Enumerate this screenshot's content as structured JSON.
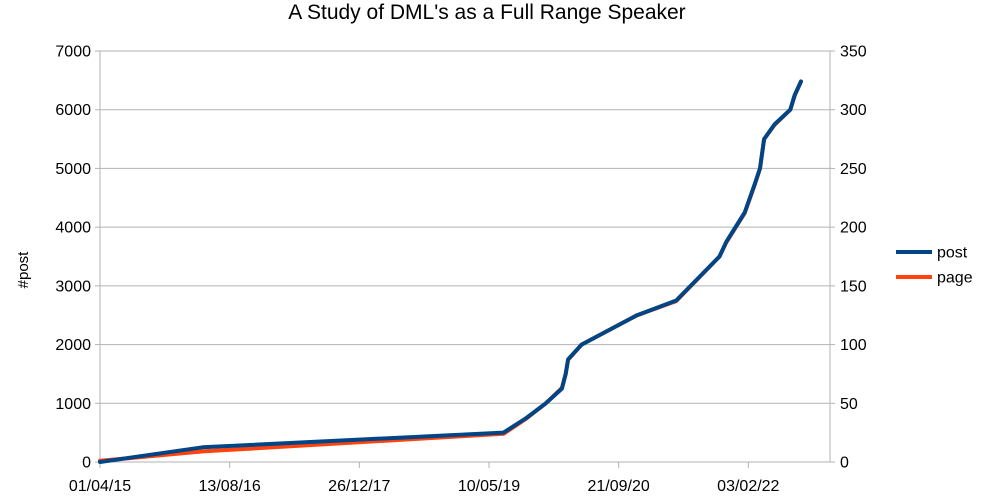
{
  "chart_data": {
    "type": "line",
    "title": "A Study of DML's as a Full Range Speaker",
    "ylabel": "#post",
    "y2label": "",
    "ylim": [
      0,
      7000
    ],
    "y2lim": [
      0,
      350
    ],
    "yticks": [
      "0",
      "1000",
      "2000",
      "3000",
      "4000",
      "5000",
      "6000",
      "7000"
    ],
    "y2ticks": [
      "0",
      "50",
      "100",
      "150",
      "200",
      "250",
      "300",
      "350"
    ],
    "xlim": [
      "2015-04-01",
      "2022-12-15"
    ],
    "xticks": [
      {
        "date": "2015-04-01",
        "label": "01/04/15"
      },
      {
        "date": "2016-08-13",
        "label": "13/08/16"
      },
      {
        "date": "2017-12-26",
        "label": "26/12/17"
      },
      {
        "date": "2019-05-10",
        "label": "10/05/19"
      },
      {
        "date": "2020-09-21",
        "label": "21/09/20"
      },
      {
        "date": "2022-02-03",
        "label": "03/02/22"
      }
    ],
    "grid": true,
    "legend_position": "right",
    "series": [
      {
        "name": "page",
        "axis": "right",
        "color": "#ff420e",
        "points": [
          {
            "x": "2015-04-01",
            "y": 1
          },
          {
            "x": "2016-05-01",
            "y": 9
          },
          {
            "x": "2019-07-05",
            "y": 24
          },
          {
            "x": "2019-10-01",
            "y": 37
          },
          {
            "x": "2019-12-15",
            "y": 50
          },
          {
            "x": "2020-02-15",
            "y": 63
          },
          {
            "x": "2020-03-01",
            "y": 75
          },
          {
            "x": "2020-03-10",
            "y": 87
          },
          {
            "x": "2020-05-01",
            "y": 100
          },
          {
            "x": "2020-12-01",
            "y": 125
          },
          {
            "x": "2021-05-01",
            "y": 137
          },
          {
            "x": "2021-10-15",
            "y": 175
          },
          {
            "x": "2021-11-10",
            "y": 187
          },
          {
            "x": "2022-01-20",
            "y": 212
          },
          {
            "x": "2022-03-01",
            "y": 237
          },
          {
            "x": "2022-03-20",
            "y": 250
          },
          {
            "x": "2022-04-05",
            "y": 275
          },
          {
            "x": "2022-05-15",
            "y": 287
          },
          {
            "x": "2022-07-15",
            "y": 300
          },
          {
            "x": "2022-08-01",
            "y": 312
          },
          {
            "x": "2022-08-25",
            "y": 324
          }
        ]
      },
      {
        "name": "post",
        "axis": "left",
        "color": "#004586",
        "points": [
          {
            "x": "2015-04-01",
            "y": 0
          },
          {
            "x": "2016-05-01",
            "y": 250
          },
          {
            "x": "2019-07-05",
            "y": 500
          },
          {
            "x": "2019-10-01",
            "y": 750
          },
          {
            "x": "2019-12-15",
            "y": 1000
          },
          {
            "x": "2020-02-15",
            "y": 1250
          },
          {
            "x": "2020-03-01",
            "y": 1500
          },
          {
            "x": "2020-03-10",
            "y": 1750
          },
          {
            "x": "2020-05-01",
            "y": 2000
          },
          {
            "x": "2020-12-01",
            "y": 2500
          },
          {
            "x": "2021-05-01",
            "y": 2750
          },
          {
            "x": "2021-10-15",
            "y": 3500
          },
          {
            "x": "2021-11-10",
            "y": 3750
          },
          {
            "x": "2022-01-20",
            "y": 4250
          },
          {
            "x": "2022-03-01",
            "y": 4750
          },
          {
            "x": "2022-03-20",
            "y": 5000
          },
          {
            "x": "2022-04-05",
            "y": 5500
          },
          {
            "x": "2022-05-15",
            "y": 5750
          },
          {
            "x": "2022-07-15",
            "y": 6000
          },
          {
            "x": "2022-08-01",
            "y": 6250
          },
          {
            "x": "2022-08-25",
            "y": 6480
          }
        ]
      }
    ]
  }
}
